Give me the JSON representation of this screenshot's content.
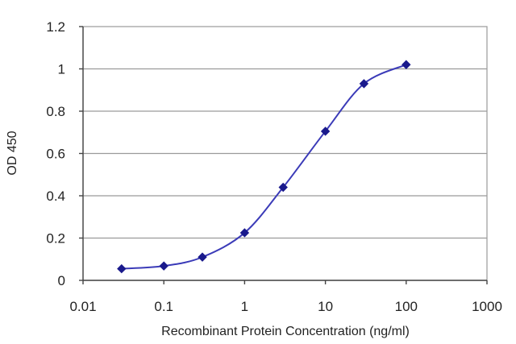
{
  "chart_data": {
    "type": "line",
    "title": "",
    "xlabel": "Recombinant Protein Concentration (ng/ml)",
    "ylabel": "OD 450",
    "x_scale": "log",
    "xlim": [
      0.01,
      1000
    ],
    "ylim": [
      0,
      1.2
    ],
    "x_ticks": [
      "0.01",
      "0.1",
      "1",
      "10",
      "100",
      "1000"
    ],
    "y_ticks": [
      "0",
      "0.2",
      "0.4",
      "0.6",
      "0.8",
      "1",
      "1.2"
    ],
    "grid": "horizontal",
    "legend": "none",
    "series": [
      {
        "x": [
          0.03,
          0.1,
          0.3,
          1,
          3,
          10,
          30,
          100
        ],
        "y": [
          0.055,
          0.068,
          0.11,
          0.225,
          0.44,
          0.705,
          0.93,
          1.02
        ],
        "color": "#3b3bb8",
        "marker_color": "#1a1a8c"
      }
    ]
  }
}
